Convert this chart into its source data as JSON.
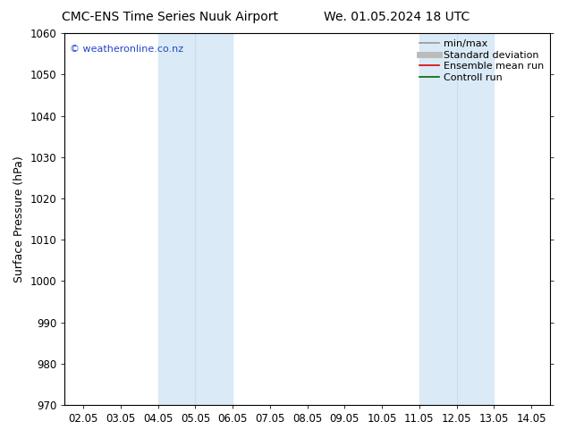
{
  "title_left": "CMC-ENS Time Series Nuuk Airport",
  "title_right": "We. 01.05.2024 18 UTC",
  "ylabel": "Surface Pressure (hPa)",
  "ylim": [
    970,
    1060
  ],
  "yticks": [
    970,
    980,
    990,
    1000,
    1010,
    1020,
    1030,
    1040,
    1050,
    1060
  ],
  "xtick_labels": [
    "02.05",
    "03.05",
    "04.05",
    "05.05",
    "06.05",
    "07.05",
    "08.05",
    "09.05",
    "10.05",
    "11.05",
    "12.05",
    "13.05",
    "14.05"
  ],
  "xtick_positions": [
    0,
    1,
    2,
    3,
    4,
    5,
    6,
    7,
    8,
    9,
    10,
    11,
    12
  ],
  "shaded_bands": [
    {
      "xstart": 2.5,
      "xend": 3.5,
      "color": "#daeaf6"
    },
    {
      "xstart": 3.5,
      "xend": 4.5,
      "color": "#daeaf6"
    },
    {
      "xstart": 9.5,
      "xend": 10.5,
      "color": "#daeaf6"
    },
    {
      "xstart": 10.5,
      "xend": 11.5,
      "color": "#daeaf6"
    }
  ],
  "watermark": "© weatheronline.co.nz",
  "watermark_color": "#2244cc",
  "legend_entries": [
    {
      "label": "min/max",
      "color": "#999999",
      "lw": 1.2,
      "linestyle": "-"
    },
    {
      "label": "Standard deviation",
      "color": "#bbbbbb",
      "lw": 5,
      "linestyle": "-"
    },
    {
      "label": "Ensemble mean run",
      "color": "#dd0000",
      "lw": 1.2,
      "linestyle": "-"
    },
    {
      "label": "Controll run",
      "color": "#006600",
      "lw": 1.2,
      "linestyle": "-"
    }
  ],
  "background_color": "#ffffff",
  "plot_bg_color": "#ffffff",
  "title_fontsize": 10,
  "axis_fontsize": 9,
  "tick_fontsize": 8.5,
  "legend_fontsize": 8
}
